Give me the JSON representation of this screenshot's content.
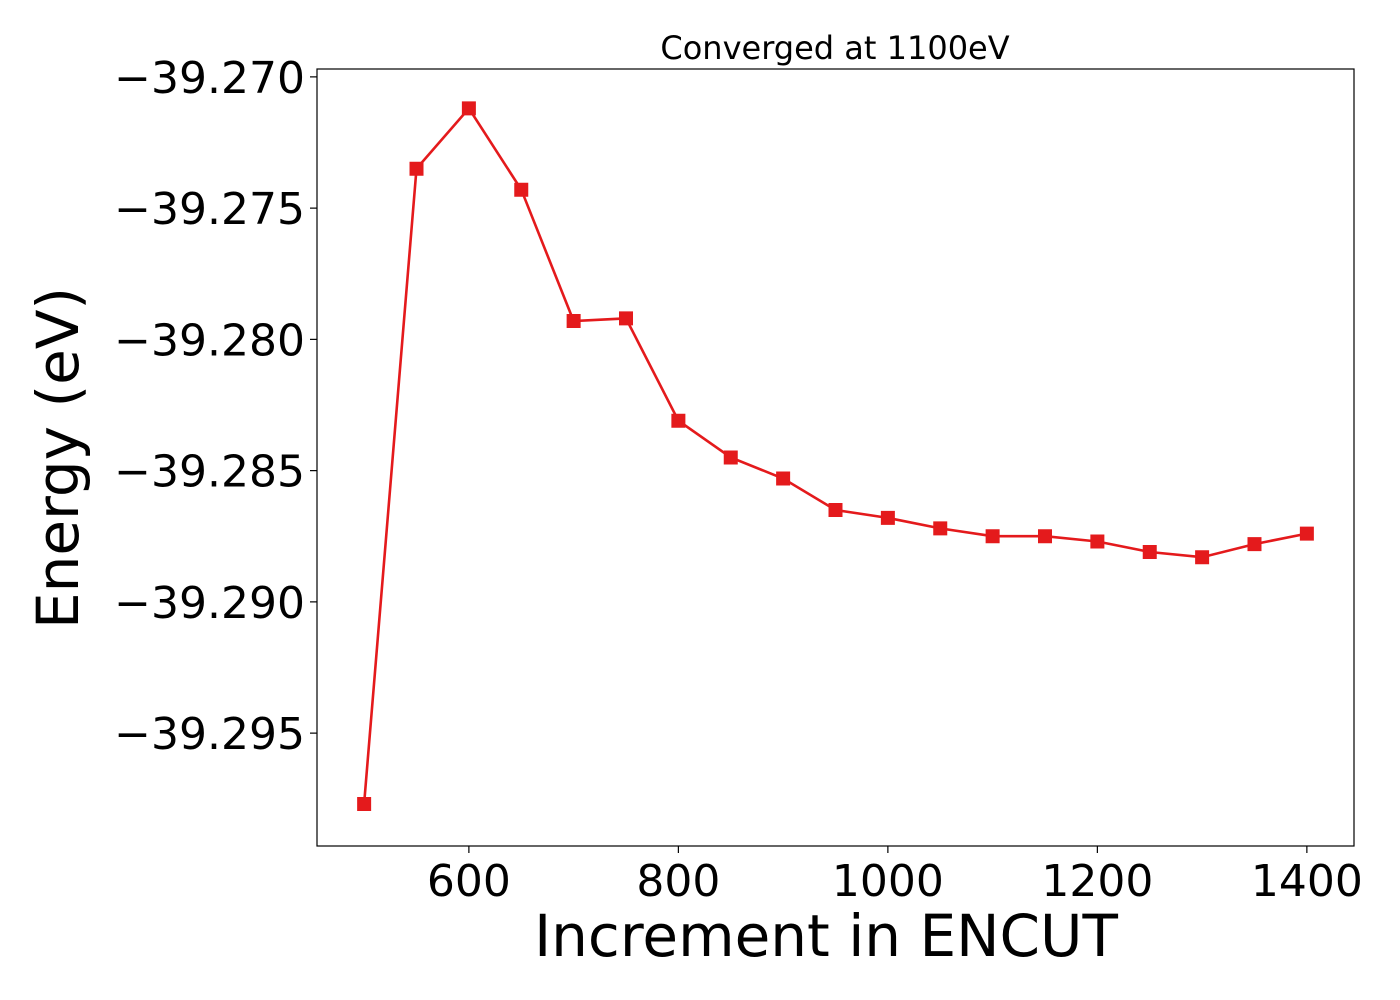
{
  "chart_data": {
    "type": "line",
    "title": "Converged at 1100eV",
    "xlabel": "Increment in ENCUT",
    "ylabel": "Energy (eV)",
    "xlim": [
      455,
      1445
    ],
    "ylim": [
      -39.2993,
      -39.2697
    ],
    "xticks": [
      600,
      800,
      1000,
      1200,
      1400
    ],
    "xtick_labels": [
      "600",
      "800",
      "1000",
      "1200",
      "1400"
    ],
    "yticks": [
      -39.27,
      -39.275,
      -39.28,
      -39.285,
      -39.29,
      -39.295
    ],
    "ytick_labels": [
      "−39.270",
      "−39.275",
      "−39.280",
      "−39.285",
      "−39.290",
      "−39.295"
    ],
    "grid": false,
    "series": [
      {
        "color": "#e41a1c",
        "marker": "square",
        "x": [
          500,
          550,
          600,
          650,
          700,
          750,
          800,
          850,
          900,
          950,
          1000,
          1050,
          1100,
          1150,
          1200,
          1250,
          1300,
          1350,
          1400
        ],
        "y": [
          -39.2977,
          -39.2735,
          -39.2712,
          -39.2743,
          -39.2793,
          -39.2792,
          -39.2831,
          -39.2845,
          -39.2853,
          -39.2865,
          -39.2868,
          -39.2872,
          -39.2875,
          -39.2875,
          -39.2877,
          -39.2881,
          -39.2883,
          -39.2878,
          -39.2874
        ]
      }
    ]
  }
}
